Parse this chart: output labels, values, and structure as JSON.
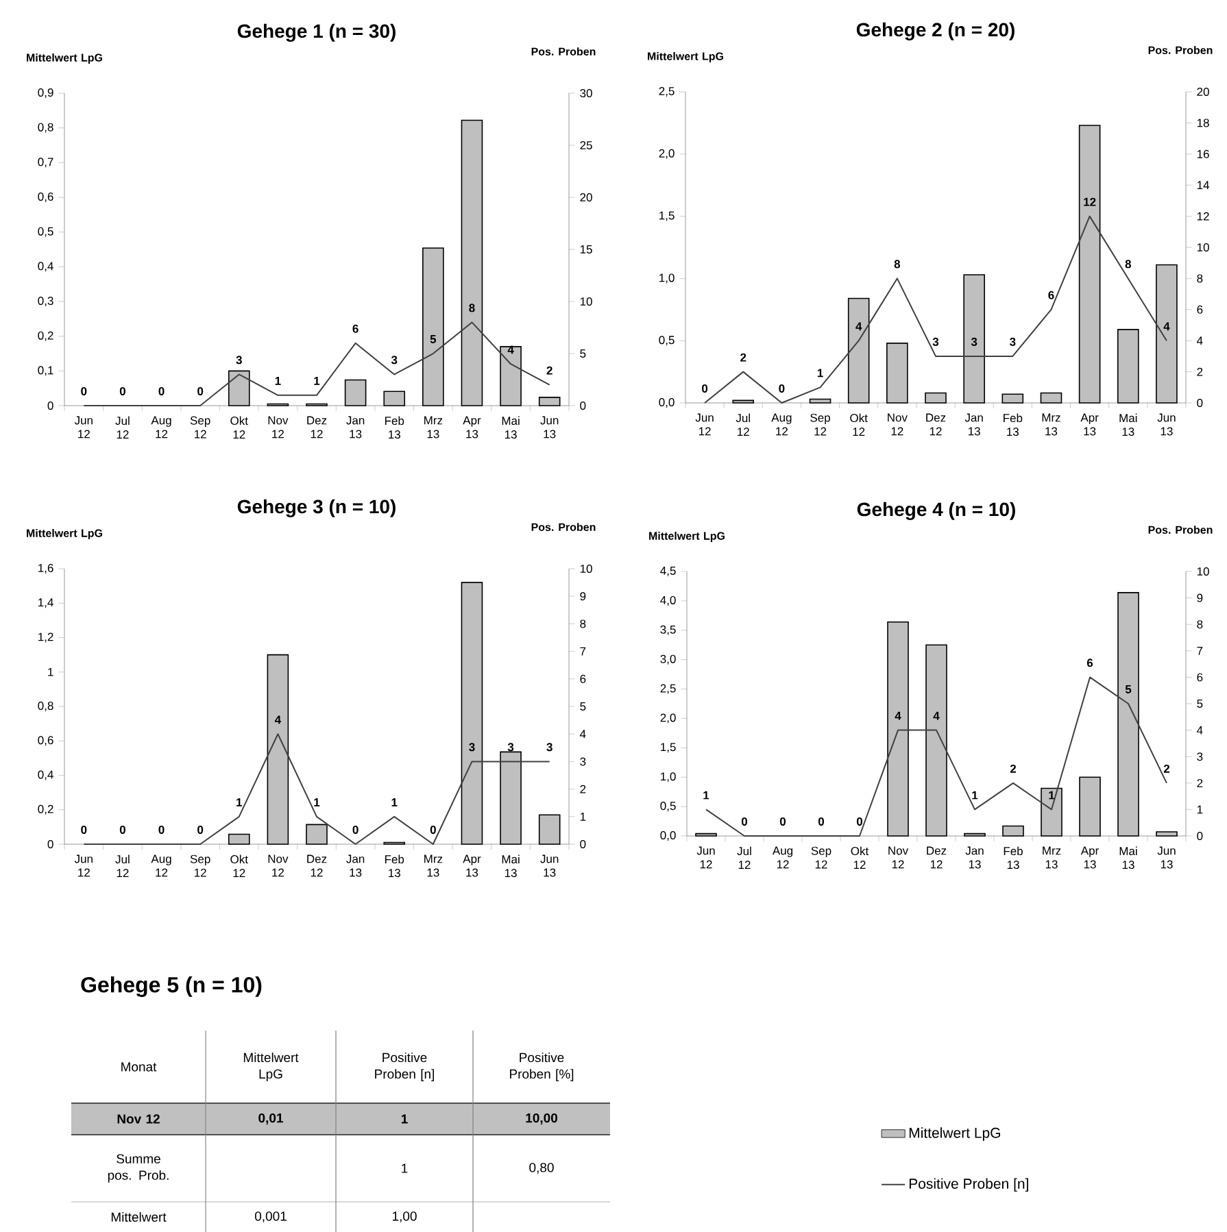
{
  "chart_data": [
    {
      "type": "bar",
      "title": "Gehege 1 (n = 30)",
      "ylabel": "Mittelwert LpG",
      "y2label": "Pos. Proben",
      "categories": [
        "Jun 12",
        "Jul 12",
        "Aug 12",
        "Sep 12",
        "Okt 12",
        "Nov 12",
        "Dez 12",
        "Jan 13",
        "Feb 13",
        "Mrz 13",
        "Apr 13",
        "Mai 13",
        "Jun 13"
      ],
      "series": [
        {
          "type": "bar",
          "color": "#bfbfbf",
          "values": [
            null,
            null,
            null,
            null,
            0.1,
            0.005,
            0.005,
            0.074,
            0.041,
            0.454,
            0.822,
            0.17,
            0.024
          ]
        },
        {
          "type": "line",
          "axis": "y2",
          "color": "#404040",
          "data_labels": true,
          "values": [
            0,
            0,
            0,
            0,
            3,
            1,
            1,
            6,
            3,
            5,
            8,
            4,
            2
          ]
        }
      ],
      "ylim": [
        0,
        0.9
      ],
      "yticks": [
        0,
        {
          "value": 0.1,
          "label": "0,1"
        },
        {
          "value": 0.2,
          "label": "0,2"
        },
        {
          "value": 0.3,
          "label": "0,3"
        },
        {
          "value": 0.4,
          "label": "0,4"
        },
        {
          "value": 0.5,
          "label": "0,5"
        },
        {
          "value": 0.6,
          "label": "0,6"
        },
        {
          "value": 0.7,
          "label": "0,7"
        },
        {
          "value": 0.8,
          "label": "0,8"
        },
        {
          "value": 0.9,
          "label": "0,9"
        }
      ],
      "y2lim": [
        0,
        30
      ],
      "y2ticks": [
        0,
        5,
        10,
        15,
        20,
        25,
        30
      ]
    },
    {
      "type": "bar",
      "title": "Gehege 2 (n = 20)",
      "ylabel": "Mittelwert LpG",
      "y2label": "Pos. Proben",
      "categories": [
        "Jun 12",
        "Jul 12",
        "Aug 12",
        "Sep 12",
        "Okt 12",
        "Nov 12",
        "Dez 12",
        "Jan 13",
        "Feb 13",
        "Mrz 13",
        "Apr 13",
        "Mai 13",
        "Jun 13"
      ],
      "series": [
        {
          "type": "bar",
          "color": "#bfbfbf",
          "values": [
            null,
            0.02,
            null,
            0.03,
            0.84,
            0.48,
            0.08,
            1.03,
            0.07,
            0.08,
            2.23,
            0.59,
            1.11
          ]
        },
        {
          "type": "line",
          "axis": "y2",
          "color": "#404040",
          "data_labels": true,
          "values": [
            0,
            2,
            0,
            1,
            4,
            8,
            3,
            3,
            3,
            6,
            12,
            8,
            4
          ]
        }
      ],
      "ylim": [
        0,
        2.5
      ],
      "yticks": [
        {
          "value": 0,
          "label": "0,0"
        },
        {
          "value": 0.5,
          "label": "0,5"
        },
        {
          "value": 1,
          "label": "1,0"
        },
        {
          "value": 1.5,
          "label": "1,5"
        },
        {
          "value": 2,
          "label": "2,0"
        },
        {
          "value": 2.5,
          "label": "2,5"
        }
      ],
      "y2lim": [
        0,
        20
      ],
      "y2ticks": [
        0,
        2,
        4,
        6,
        8,
        10,
        12,
        14,
        16,
        18,
        20
      ]
    },
    {
      "type": "bar",
      "title": "Gehege 3 (n = 10)",
      "ylabel": "Mittelwert LpG",
      "y2label": "Pos. Proben",
      "categories": [
        "Jun 12",
        "Jul 12",
        "Aug 12",
        "Sep 12",
        "Okt 12",
        "Nov 12",
        "Dez 12",
        "Jan 13",
        "Feb 13",
        "Mrz 13",
        "Apr 13",
        "Mai 13",
        "Jun 13"
      ],
      "series": [
        {
          "type": "bar",
          "color": "#bfbfbf",
          "values": [
            null,
            null,
            null,
            null,
            0.058,
            1.1,
            0.114,
            null,
            0.01,
            null,
            1.52,
            0.536,
            0.17
          ]
        },
        {
          "type": "line",
          "axis": "y2",
          "color": "#404040",
          "data_labels": true,
          "values": [
            0,
            0,
            0,
            0,
            1,
            4,
            1,
            0,
            1,
            0,
            3,
            3,
            3
          ]
        }
      ],
      "ylim": [
        0,
        1.6
      ],
      "yticks": [
        0,
        {
          "value": 0.2,
          "label": "0,2"
        },
        {
          "value": 0.4,
          "label": "0,4"
        },
        {
          "value": 0.6,
          "label": "0,6"
        },
        {
          "value": 0.8,
          "label": "0,8"
        },
        1,
        {
          "value": 1.2,
          "label": "1,2"
        },
        {
          "value": 1.4,
          "label": "1,4"
        },
        {
          "value": 1.6,
          "label": "1,6"
        }
      ],
      "y2lim": [
        0,
        10
      ],
      "y2ticks": [
        0,
        1,
        2,
        3,
        4,
        5,
        6,
        7,
        8,
        9,
        10
      ]
    },
    {
      "type": "bar",
      "title": "Gehege 4 (n = 10)",
      "ylabel": "Mittelwert LpG",
      "y2label": "Pos. Proben",
      "legend": "bottom right",
      "categories": [
        "Jun 12",
        "Jul 12",
        "Aug 12",
        "Sep 12",
        "Okt 12",
        "Nov 12",
        "Dez 12",
        "Jan 13",
        "Feb 13",
        "Mrz 13",
        "Apr 13",
        "Mai 13",
        "Jun 13"
      ],
      "series": [
        {
          "type": "bar",
          "name": "Mittelwert LpG",
          "color": "#bfbfbf",
          "values": [
            0.04,
            null,
            null,
            null,
            null,
            3.64,
            3.25,
            0.04,
            0.17,
            0.81,
            1.0,
            4.14,
            0.07
          ]
        },
        {
          "type": "line",
          "axis": "y2",
          "name": "Positive Proben [n]",
          "color": "#404040",
          "data_labels": true,
          "values": [
            1,
            0,
            0,
            0,
            0,
            4,
            4,
            1,
            2,
            1,
            6,
            5,
            2
          ]
        }
      ],
      "ylim": [
        0,
        4.5
      ],
      "yticks": [
        {
          "value": 0,
          "label": "0,0"
        },
        {
          "value": 0.5,
          "label": "0,5"
        },
        {
          "value": 1,
          "label": "1,0"
        },
        {
          "value": 1.5,
          "label": "1,5"
        },
        {
          "value": 2,
          "label": "2,0"
        },
        {
          "value": 2.5,
          "label": "2,5"
        },
        {
          "value": 3,
          "label": "3,0"
        },
        {
          "value": 3.5,
          "label": "3,5"
        },
        {
          "value": 4,
          "label": "4,0"
        },
        {
          "value": 4.5,
          "label": "4,5"
        }
      ],
      "y2lim": [
        0,
        10
      ],
      "y2ticks": [
        0,
        1,
        2,
        3,
        4,
        5,
        6,
        7,
        8,
        9,
        10
      ]
    },
    {
      "type": "other",
      "title": "Gehege 5 (n = 10)",
      "annotations": [
        "Monat",
        "Mittelwert LpG",
        "Positive Proben [n]",
        "Positive Proben [%]",
        "Nov 12",
        "0,01",
        "1",
        "10,00",
        "Summe pos. Prob.",
        null,
        "1",
        "0,80",
        "Mittelwert",
        "0,001",
        "1,00",
        null
      ]
    }
  ]
}
